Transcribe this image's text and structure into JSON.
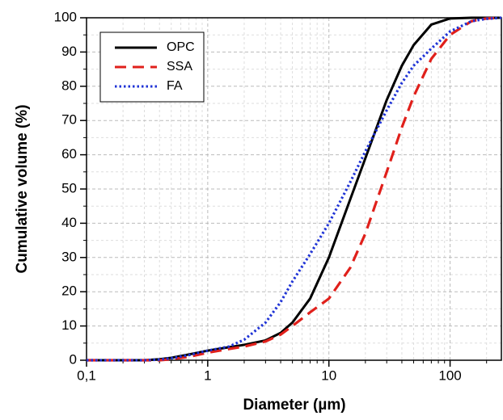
{
  "chart_data": {
    "type": "line",
    "x_label": "Diameter (µm)",
    "y_label": "Cumulative volume (%)",
    "x_log": true,
    "grid": true,
    "minor_grid": true,
    "legend_position": "upper-left",
    "xlim": [
      0.1,
      265
    ],
    "ylim": [
      0,
      100
    ],
    "xticks": [
      {
        "value": 0.1,
        "label": "0,1"
      },
      1,
      10,
      100
    ],
    "yticks": [
      0,
      10,
      20,
      30,
      40,
      50,
      60,
      70,
      80,
      90,
      100
    ],
    "x": [
      0.1,
      0.2,
      0.3,
      0.4,
      0.5,
      0.7,
      1,
      1.5,
      2,
      3,
      4,
      5,
      7,
      10,
      15,
      20,
      30,
      40,
      50,
      70,
      100,
      150,
      200,
      265
    ],
    "series": [
      {
        "name": "OPC",
        "color": "#000000",
        "dash": "solid",
        "values": [
          0,
          0,
          0,
          0.3,
          0.7,
          1.7,
          2.8,
          3.8,
          4.5,
          5.8,
          8,
          11,
          18,
          30,
          47,
          59,
          76,
          86,
          92,
          98,
          99.8,
          100,
          100,
          100
        ]
      },
      {
        "name": "SSA",
        "color": "#e0201b",
        "dash": "dashed",
        "values": [
          0,
          0,
          0,
          0,
          0.3,
          1,
          2.2,
          3.3,
          4,
          5.5,
          7.5,
          10,
          14,
          18,
          27,
          37,
          55,
          68,
          77,
          88,
          95,
          99,
          99.8,
          100
        ]
      },
      {
        "name": "FA",
        "color": "#1f33d6",
        "dash": "dotted",
        "values": [
          0,
          0,
          0,
          0.2,
          0.6,
          1.5,
          2.8,
          4,
          6,
          11,
          17,
          23,
          31,
          40,
          52,
          61,
          73,
          81,
          86,
          91,
          96,
          99,
          99.7,
          100
        ]
      }
    ]
  }
}
